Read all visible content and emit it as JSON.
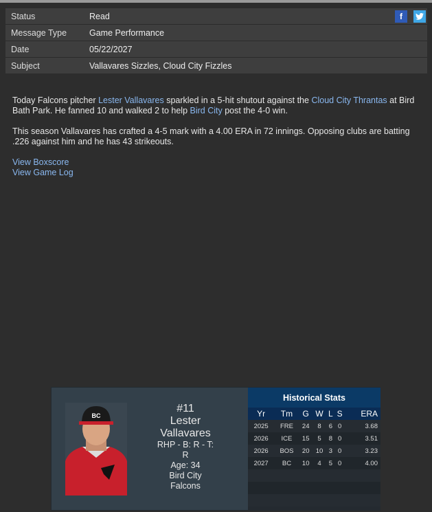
{
  "meta": [
    {
      "label": "Status",
      "value": "Read"
    },
    {
      "label": "Message Type",
      "value": "Game Performance"
    },
    {
      "label": "Date",
      "value": "05/22/2027"
    },
    {
      "label": "Subject",
      "value": "Vallavares Sizzles, Cloud City Fizzles"
    }
  ],
  "social": {
    "facebook": "f",
    "twitter": "t"
  },
  "article": {
    "p1": {
      "a": "Today Falcons pitcher ",
      "link1": "Lester Vallavares",
      "b": " sparkled in a 5-hit shutout against the ",
      "link2": "Cloud City Thrantas",
      "c": " at Bird Bath Park. He fanned 10 and walked 2 to help ",
      "link3": "Bird City",
      "d": " post the 4-0 win."
    },
    "p2": "This season Vallavares has crafted a 4-5 mark with a 4.00 ERA in 72 innings. Opposing clubs are batting .226 against him and he has 43 strikeouts.",
    "links": [
      "View Boxscore",
      "View Game Log"
    ]
  },
  "player": {
    "number": "#11",
    "first": "Lester",
    "last": "Vallavares",
    "bio": "RHP - B: R - T: R",
    "age": "Age: 34",
    "team": "Bird City Falcons",
    "cap_logo": "BC"
  },
  "stats": {
    "title": "Historical Stats",
    "headers": [
      "Yr",
      "Tm",
      "G",
      "W",
      "L",
      "S",
      "ERA"
    ],
    "rows": [
      [
        "2025",
        "FRE",
        "24",
        "8",
        "6",
        "0",
        "3.68"
      ],
      [
        "2026",
        "ICE",
        "15",
        "5",
        "8",
        "0",
        "3.51"
      ],
      [
        "2026",
        "BOS",
        "20",
        "10",
        "3",
        "0",
        "3.23"
      ],
      [
        "2027",
        "BC",
        "10",
        "4",
        "5",
        "0",
        "4.00"
      ]
    ]
  }
}
